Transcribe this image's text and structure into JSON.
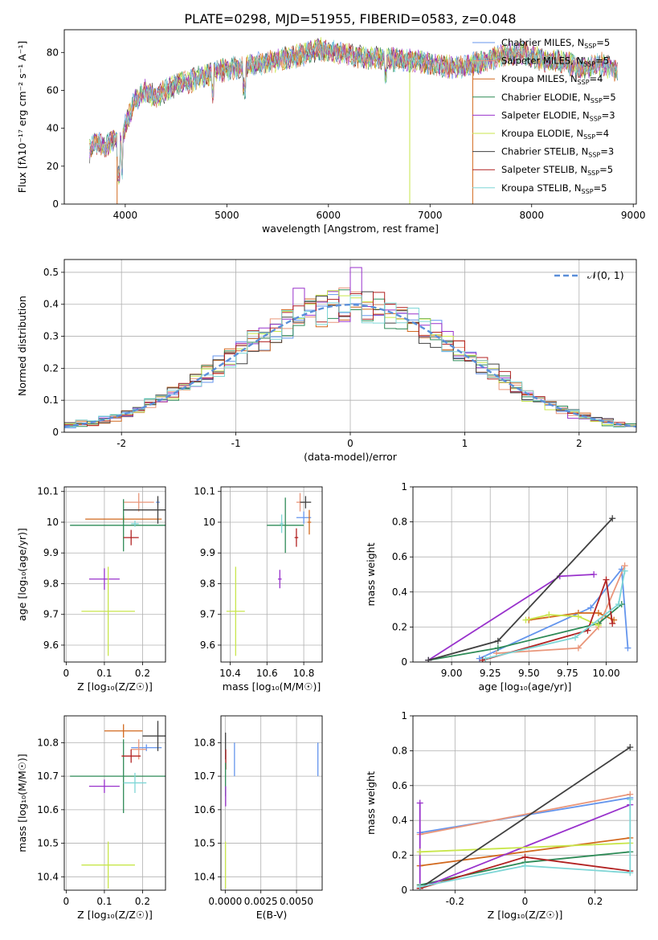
{
  "figure": {
    "title": "PLATE=0298, MJD=51955, FIBERID=0583, z=0.048"
  },
  "colors": [
    "#5b8fd9",
    "#e08a3c",
    "#d96cb0",
    "#4a7a4a",
    "#8e3aa8",
    "#cde05a",
    "#4d4d4d",
    "#a31515",
    "#7fd0d9"
  ],
  "models": [
    {
      "label": "Chabrier MILES, N",
      "sub": "SSP",
      "n": "=5",
      "color": "#6495ed"
    },
    {
      "label": "Salpeter MILES, N",
      "sub": "SSP",
      "n": "=5",
      "color": "#e9967a"
    },
    {
      "label": "Kroupa MILES, N",
      "sub": "SSP",
      "n": "=4",
      "color": "#d2691e"
    },
    {
      "label": "Chabrier ELODIE, N",
      "sub": "SSP",
      "n": "=5",
      "color": "#2e8b57"
    },
    {
      "label": "Salpeter ELODIE, N",
      "sub": "SSP",
      "n": "=3",
      "color": "#9932cc"
    },
    {
      "label": "Kroupa ELODIE, N",
      "sub": "SSP",
      "n": "=4",
      "color": "#c8e64b"
    },
    {
      "label": "Chabrier STELIB, N",
      "sub": "SSP",
      "n": "=3",
      "color": "#404040"
    },
    {
      "label": "Salpeter STELIB, N",
      "sub": "SSP",
      "n": "=5",
      "color": "#b22222"
    },
    {
      "label": "Kroupa STELIB, N",
      "sub": "SSP",
      "n": "=5",
      "color": "#7ed6d6"
    }
  ],
  "chart_data": [
    {
      "type": "line",
      "id": "spectrum",
      "title": "PLATE=0298, MJD=51955, FIBERID=0583, z=0.048",
      "xlabel": "wavelength [Angstrom, rest frame]",
      "ylabel": "Flux [fλ10⁻¹⁷ erg cm⁻² s⁻¹ A⁻¹]",
      "xlim": [
        3400,
        9030
      ],
      "ylim": [
        0,
        92
      ],
      "xticks": [
        4000,
        5000,
        6000,
        7000,
        8000,
        9000
      ],
      "yticks": [
        0,
        20,
        40,
        60,
        80
      ],
      "x": [
        3650,
        3700,
        3800,
        3900,
        3950,
        4000,
        4100,
        4200,
        4300,
        4400,
        4500,
        4700,
        4900,
        5100,
        5300,
        5500,
        5700,
        5900,
        6100,
        6300,
        6500,
        6700,
        6900,
        7100,
        7300,
        7500,
        7700,
        7900,
        8100,
        8300,
        8500,
        8700,
        8850
      ],
      "series_values": [
        28,
        33,
        30,
        35,
        32,
        41,
        55,
        60,
        56,
        60,
        63,
        66,
        70,
        72,
        74,
        76,
        78,
        82,
        80,
        78,
        77,
        76,
        75,
        73,
        72,
        75,
        78,
        80,
        76,
        75,
        72,
        74,
        70
      ]
    },
    {
      "type": "step",
      "id": "residuals",
      "xlabel": "(data-model)/error",
      "ylabel": "Normed distribution",
      "xlim": [
        -2.5,
        2.5
      ],
      "ylim": [
        0,
        0.54
      ],
      "xticks": [
        -2,
        -1,
        0,
        1,
        2
      ],
      "yticks": [
        0.0,
        0.1,
        0.2,
        0.3,
        0.4,
        0.5
      ],
      "reference_label": "𝒩(0, 1)",
      "bin_width": 0.1
    },
    {
      "type": "scatter",
      "id": "age-vs-z",
      "xlabel": "Z [log₁₀(Z/Z☉)]",
      "ylabel": "age  [log₁₀(age/yr)]",
      "xlim": [
        -0.005,
        0.26
      ],
      "ylim": [
        9.545,
        10.115
      ],
      "xticks": [
        0.0,
        0.1,
        0.2
      ],
      "yticks": [
        9.6,
        9.7,
        9.8,
        9.9,
        10.0,
        10.1
      ],
      "points": [
        {
          "x": 0.24,
          "y": 10.065,
          "xe": 0.005,
          "ye": 0.01,
          "c": 0
        },
        {
          "x": 0.19,
          "y": 10.065,
          "xe": 0.04,
          "ye": 0.03,
          "c": 1
        },
        {
          "x": 0.15,
          "y": 10.01,
          "xe": 0.1,
          "ye": 0.01,
          "c": 2
        },
        {
          "x": 0.15,
          "y": 9.99,
          "xe": 0.14,
          "ye": 0.085,
          "c": 3
        },
        {
          "x": 0.1,
          "y": 9.815,
          "xe": 0.04,
          "ye": 0.035,
          "c": 4
        },
        {
          "x": 0.11,
          "y": 9.71,
          "xe": 0.07,
          "ye": 0.145,
          "c": 5
        },
        {
          "x": 0.24,
          "y": 10.04,
          "xe": 0.09,
          "ye": 0.045,
          "c": 6
        },
        {
          "x": 0.17,
          "y": 9.95,
          "xe": 0.02,
          "ye": 0.025,
          "c": 7
        },
        {
          "x": 0.18,
          "y": 9.995,
          "xe": 0.01,
          "ye": 0.01,
          "c": 8
        }
      ]
    },
    {
      "type": "scatter",
      "id": "age-vs-mass",
      "xlabel": "mass [log₁₀(M/M☉)]",
      "xlim": [
        10.35,
        10.9
      ],
      "ylim": [
        9.545,
        10.115
      ],
      "xticks": [
        10.4,
        10.6,
        10.8
      ],
      "yticks": [
        9.6,
        9.7,
        9.8,
        9.9,
        10.0,
        10.1
      ],
      "points": [
        {
          "x": 10.8,
          "y": 10.015,
          "xe": 0.04,
          "ye": 0.02,
          "c": 0
        },
        {
          "x": 10.78,
          "y": 10.065,
          "xe": 0.02,
          "ye": 0.03,
          "c": 1
        },
        {
          "x": 10.83,
          "y": 10.0,
          "xe": 0.01,
          "ye": 0.04,
          "c": 2
        },
        {
          "x": 10.7,
          "y": 9.99,
          "xe": 0.1,
          "ye": 0.09,
          "c": 3
        },
        {
          "x": 10.67,
          "y": 9.815,
          "xe": 0.01,
          "ye": 0.03,
          "c": 4
        },
        {
          "x": 10.43,
          "y": 9.71,
          "xe": 0.05,
          "ye": 0.145,
          "c": 5
        },
        {
          "x": 10.81,
          "y": 10.065,
          "xe": 0.03,
          "ye": 0.02,
          "c": 6
        },
        {
          "x": 10.76,
          "y": 9.95,
          "xe": 0.01,
          "ye": 0.03,
          "c": 7
        },
        {
          "x": 10.68,
          "y": 9.995,
          "xe": 0.01,
          "ye": 0.03,
          "c": 8
        }
      ]
    },
    {
      "type": "line",
      "id": "weight-vs-age",
      "xlabel": "age  [log₁₀(age/yr)]",
      "ylabel": "mass weight",
      "xlim": [
        8.75,
        10.2
      ],
      "ylim": [
        0,
        1.0
      ],
      "xticks": [
        9.0,
        9.25,
        9.5,
        9.75,
        10.0
      ],
      "xticklabels": [
        "9.00",
        "9.25",
        "9.50",
        "9.75",
        "10.00"
      ],
      "yticks": [
        0.0,
        0.2,
        0.4,
        0.6,
        0.8,
        1.0
      ],
      "series": [
        {
          "c": 0,
          "x": [
            9.18,
            9.9,
            10.1,
            10.14
          ],
          "y": [
            0.02,
            0.31,
            0.53,
            0.08
          ]
        },
        {
          "c": 1,
          "x": [
            9.29,
            9.82,
            9.95,
            10.12
          ],
          "y": [
            0.05,
            0.08,
            0.2,
            0.55
          ]
        },
        {
          "c": 2,
          "x": [
            9.5,
            9.82,
            9.95,
            10.05
          ],
          "y": [
            0.24,
            0.28,
            0.28,
            0.24
          ]
        },
        {
          "c": 3,
          "x": [
            8.85,
            9.3,
            9.95,
            10.1
          ],
          "y": [
            0.01,
            0.08,
            0.22,
            0.33
          ]
        },
        {
          "c": 4,
          "x": [
            8.85,
            9.7,
            9.92
          ],
          "y": [
            0.01,
            0.49,
            0.5
          ]
        },
        {
          "c": 5,
          "x": [
            9.48,
            9.63,
            9.82,
            9.95
          ],
          "y": [
            0.24,
            0.27,
            0.26,
            0.21
          ]
        },
        {
          "c": 6,
          "x": [
            8.85,
            9.3,
            10.04
          ],
          "y": [
            0.01,
            0.12,
            0.82
          ]
        },
        {
          "c": 7,
          "x": [
            9.2,
            9.88,
            10.0,
            10.04
          ],
          "y": [
            0.01,
            0.18,
            0.47,
            0.22
          ]
        },
        {
          "c": 8,
          "x": [
            9.22,
            9.8,
            10.08,
            10.12
          ],
          "y": [
            0.02,
            0.14,
            0.33,
            0.52
          ]
        }
      ]
    },
    {
      "type": "scatter",
      "id": "mass-vs-z",
      "xlabel": "Z [log₁₀(Z/Z☉)]",
      "ylabel": "mass [log₁₀(M/M☉)]",
      "xlim": [
        -0.005,
        0.26
      ],
      "ylim": [
        10.36,
        10.88
      ],
      "xticks": [
        0.0,
        0.1,
        0.2
      ],
      "yticks": [
        10.4,
        10.5,
        10.6,
        10.7,
        10.8
      ],
      "points": [
        {
          "x": 0.21,
          "y": 10.785,
          "xe": 0.04,
          "ye": 0.01,
          "c": 0
        },
        {
          "x": 0.19,
          "y": 10.78,
          "xe": 0.02,
          "ye": 0.03,
          "c": 1
        },
        {
          "x": 0.15,
          "y": 10.835,
          "xe": 0.05,
          "ye": 0.02,
          "c": 2
        },
        {
          "x": 0.15,
          "y": 10.7,
          "xe": 0.14,
          "ye": 0.11,
          "c": 3
        },
        {
          "x": 0.1,
          "y": 10.67,
          "xe": 0.04,
          "ye": 0.02,
          "c": 4
        },
        {
          "x": 0.11,
          "y": 10.435,
          "xe": 0.07,
          "ye": 0.07,
          "c": 5
        },
        {
          "x": 0.24,
          "y": 10.82,
          "xe": 0.04,
          "ye": 0.045,
          "c": 6
        },
        {
          "x": 0.17,
          "y": 10.76,
          "xe": 0.025,
          "ye": 0.02,
          "c": 7
        },
        {
          "x": 0.18,
          "y": 10.68,
          "xe": 0.03,
          "ye": 0.03,
          "c": 8
        }
      ]
    },
    {
      "type": "scatter",
      "id": "mass-vs-ebv",
      "xlabel": "E(B-V)",
      "xlim": [
        -0.0003,
        0.0068
      ],
      "ylim": [
        10.36,
        10.88
      ],
      "xticks": [
        0.0,
        0.0025,
        0.005
      ],
      "xticklabels": [
        "0.0000",
        "0.0025",
        "0.0050"
      ],
      "yticks": [
        10.4,
        10.5,
        10.6,
        10.7,
        10.8
      ],
      "points": [
        {
          "x": 0.00065,
          "y": 10.75,
          "xe": 0,
          "ye": 0.05,
          "c": 0
        },
        {
          "x": 2e-05,
          "y": 10.79,
          "xe": 0,
          "ye": 0.04,
          "c": 6
        },
        {
          "x": 4e-05,
          "y": 10.75,
          "xe": 0,
          "ye": 0.03,
          "c": 7
        },
        {
          "x": 2e-05,
          "y": 10.69,
          "xe": 0,
          "ye": 0.05,
          "c": 3
        },
        {
          "x": 3e-05,
          "y": 10.64,
          "xe": 0,
          "ye": 0.03,
          "c": 4
        },
        {
          "x": 2e-05,
          "y": 10.435,
          "xe": 0,
          "ye": 0.07,
          "c": 5
        },
        {
          "x": 0.0065,
          "y": 10.75,
          "xe": 0,
          "ye": 0.05,
          "c": 0
        }
      ]
    },
    {
      "type": "line",
      "id": "weight-vs-z",
      "xlabel": "Z [log₁₀(Z/Z☉)]",
      "ylabel": "mass weight",
      "xlim": [
        -0.32,
        0.32
      ],
      "ylim": [
        0,
        1.0
      ],
      "xticks": [
        -0.2,
        0.0,
        0.2
      ],
      "yticks": [
        0.0,
        0.2,
        0.4,
        0.6,
        0.8,
        1.0
      ],
      "series": [
        {
          "c": 0,
          "x": [
            -0.3,
            0.3
          ],
          "y": [
            0.33,
            0.53
          ]
        },
        {
          "c": 1,
          "x": [
            -0.3,
            0.3
          ],
          "y": [
            0.32,
            0.55
          ]
        },
        {
          "c": 2,
          "x": [
            -0.3,
            0.3
          ],
          "y": [
            0.14,
            0.3
          ]
        },
        {
          "c": 3,
          "x": [
            -0.3,
            0.0,
            0.3
          ],
          "y": [
            0.03,
            0.16,
            0.22
          ]
        },
        {
          "c": 4,
          "x": [
            -0.3,
            -0.3,
            0.3
          ],
          "y": [
            0.5,
            0.01,
            0.49
          ]
        },
        {
          "c": 5,
          "x": [
            -0.3,
            0.3
          ],
          "y": [
            0.22,
            0.27
          ]
        },
        {
          "c": 6,
          "x": [
            -0.3,
            0.3
          ],
          "y": [
            0.01,
            0.82
          ]
        },
        {
          "c": 7,
          "x": [
            -0.3,
            0.0,
            0.3
          ],
          "y": [
            0.01,
            0.19,
            0.11
          ]
        },
        {
          "c": 8,
          "x": [
            -0.3,
            0.0,
            0.3,
            0.3
          ],
          "y": [
            0.02,
            0.14,
            0.1,
            0.52
          ]
        }
      ]
    }
  ]
}
